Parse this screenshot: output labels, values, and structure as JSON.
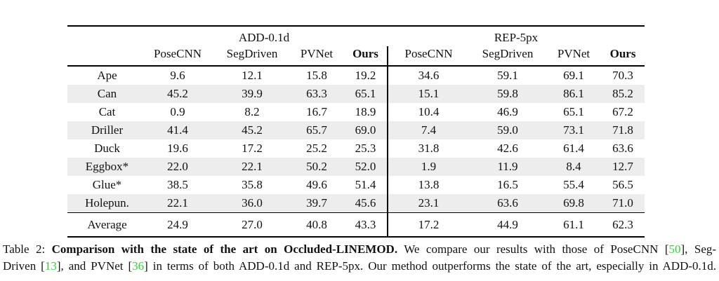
{
  "colors": {
    "citation_green": "#2fd42f",
    "stripe_gray": "#ededed",
    "rule_black": "#000000"
  },
  "table": {
    "group_headers": [
      "ADD-0.1d",
      "REP-5px"
    ],
    "sub_headers": [
      "PoseCNN",
      "SegDriven",
      "PVNet",
      "Ours",
      "PoseCNN",
      "SegDriven",
      "PVNet",
      "Ours"
    ],
    "rows": [
      {
        "label": "Ape",
        "values": [
          "9.6",
          "12.1",
          "15.8",
          "19.2",
          "34.6",
          "59.1",
          "69.1",
          "70.3"
        ],
        "bold": [
          3,
          7
        ]
      },
      {
        "label": "Can",
        "values": [
          "45.2",
          "39.9",
          "63.3",
          "65.1",
          "15.1",
          "59.8",
          "86.1",
          "85.2"
        ],
        "bold": [
          3,
          6
        ]
      },
      {
        "label": "Cat",
        "values": [
          "0.9",
          "8.2",
          "16.7",
          "18.9",
          "10.4",
          "46.9",
          "65.1",
          "67.2"
        ],
        "bold": [
          3,
          7
        ]
      },
      {
        "label": "Driller",
        "values": [
          "41.4",
          "45.2",
          "65.7",
          "69.0",
          "7.4",
          "59.0",
          "73.1",
          "71.8"
        ],
        "bold": [
          3,
          6
        ]
      },
      {
        "label": "Duck",
        "values": [
          "19.6",
          "17.2",
          "25.2",
          "25.3",
          "31.8",
          "42.6",
          "61.4",
          "63.6"
        ],
        "bold": [
          3,
          7
        ]
      },
      {
        "label": "Eggbox*",
        "values": [
          "22.0",
          "22.1",
          "50.2",
          "52.0",
          "1.9",
          "11.9",
          "8.4",
          "12.7"
        ],
        "bold": [
          3,
          7
        ]
      },
      {
        "label": "Glue*",
        "values": [
          "38.5",
          "35.8",
          "49.6",
          "51.4",
          "13.8",
          "16.5",
          "55.4",
          "56.5"
        ],
        "bold": [
          3,
          7
        ]
      },
      {
        "label": "Holepun.",
        "values": [
          "22.1",
          "36.0",
          "39.7",
          "45.6",
          "23.1",
          "63.6",
          "69.8",
          "71.0"
        ],
        "bold": [
          3,
          7
        ]
      }
    ],
    "average": {
      "label": "Average",
      "values": [
        "24.9",
        "27.0",
        "40.8",
        "43.3",
        "17.2",
        "44.9",
        "61.1",
        "62.3"
      ],
      "bold": [
        3,
        7
      ]
    }
  },
  "chart_data": {
    "type": "table",
    "title": "Comparison with the state of the art on Occluded-LINEMOD",
    "metric_groups": [
      "ADD-0.1d",
      "REP-5px"
    ],
    "methods": [
      "PoseCNN",
      "SegDriven",
      "PVNet",
      "Ours"
    ],
    "categories": [
      "Ape",
      "Can",
      "Cat",
      "Driller",
      "Duck",
      "Eggbox*",
      "Glue*",
      "Holepun.",
      "Average"
    ],
    "series": [
      {
        "name": "ADD-0.1d PoseCNN",
        "values": [
          9.6,
          45.2,
          0.9,
          41.4,
          19.6,
          22.0,
          38.5,
          22.1,
          24.9
        ]
      },
      {
        "name": "ADD-0.1d SegDriven",
        "values": [
          12.1,
          39.9,
          8.2,
          45.2,
          17.2,
          22.1,
          35.8,
          36.0,
          27.0
        ]
      },
      {
        "name": "ADD-0.1d PVNet",
        "values": [
          15.8,
          63.3,
          16.7,
          65.7,
          25.2,
          50.2,
          49.6,
          39.7,
          40.8
        ]
      },
      {
        "name": "ADD-0.1d Ours",
        "values": [
          19.2,
          65.1,
          18.9,
          69.0,
          25.3,
          52.0,
          51.4,
          45.6,
          43.3
        ]
      },
      {
        "name": "REP-5px PoseCNN",
        "values": [
          34.6,
          15.1,
          10.4,
          7.4,
          31.8,
          1.9,
          13.8,
          23.1,
          17.2
        ]
      },
      {
        "name": "REP-5px SegDriven",
        "values": [
          59.1,
          59.8,
          46.9,
          59.0,
          42.6,
          11.9,
          16.5,
          63.6,
          44.9
        ]
      },
      {
        "name": "REP-5px PVNet",
        "values": [
          69.1,
          86.1,
          65.1,
          73.1,
          61.4,
          8.4,
          55.4,
          69.8,
          61.1
        ]
      },
      {
        "name": "REP-5px Ours",
        "values": [
          70.3,
          85.2,
          67.2,
          71.8,
          63.6,
          12.7,
          56.5,
          71.0,
          62.3
        ]
      }
    ]
  },
  "caption": {
    "bracket_open": "[",
    "bracket_close": "]",
    "line1": {
      "prefix": "Table 2: ",
      "bold_text": "Comparison with the state of the art on Occluded-LINEMOD.",
      "text_a": "We compare our results with those of PoseCNN",
      "cite1": "50",
      "after_cite": ", Seg-"
    },
    "line2": {
      "text_a": "Driven",
      "cite1": "13",
      "text_b": ", and PVNet",
      "cite2": "36",
      "text_c": "in terms of both ADD-0.1d and REP-5px. Our method outperforms the state of the art, especially in ADD-0.1d."
    }
  }
}
